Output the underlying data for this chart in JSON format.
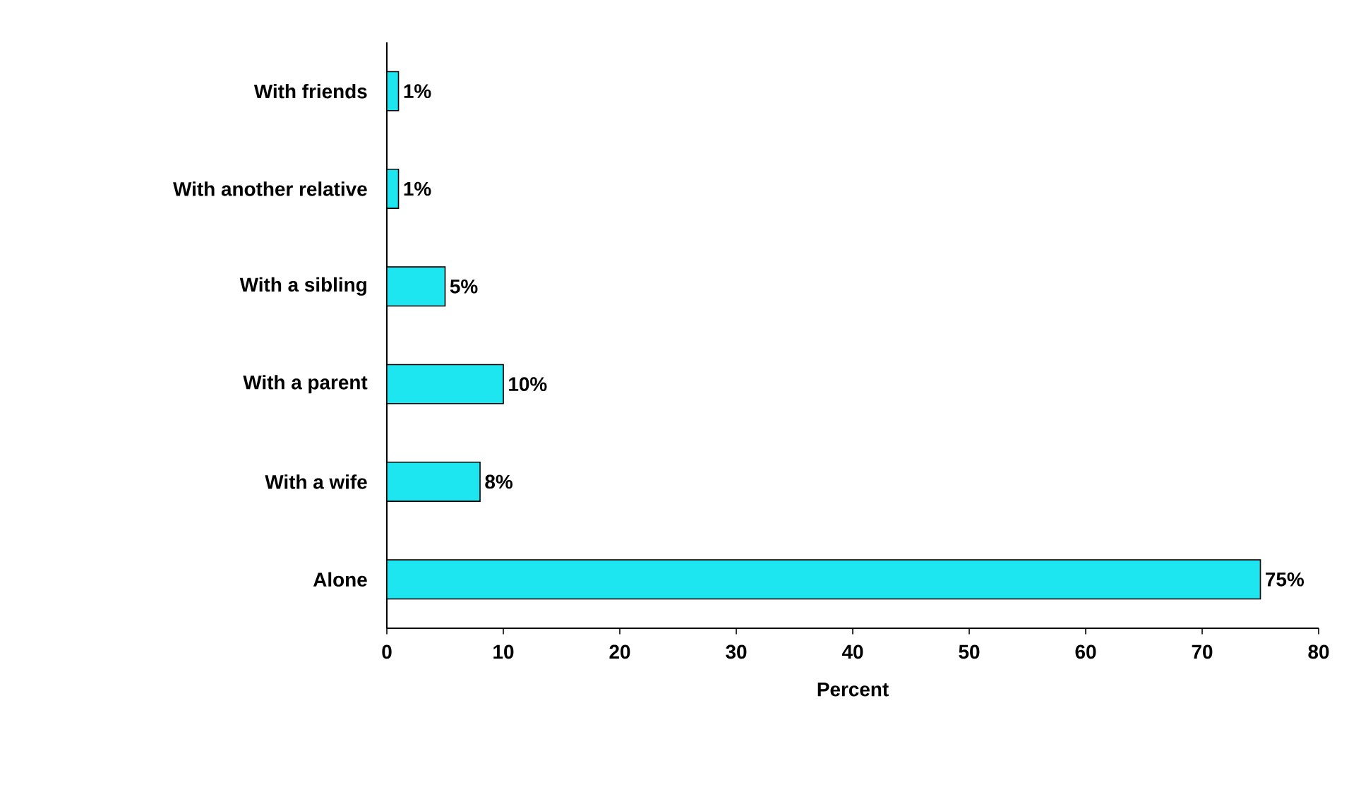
{
  "chart_data": {
    "type": "bar",
    "orientation": "horizontal",
    "categories": [
      "With friends",
      "With another relative",
      "With a sibling",
      "With a parent",
      "With a wife",
      "Alone"
    ],
    "values": [
      1,
      1,
      5,
      10,
      8,
      75
    ],
    "value_labels": [
      "1%",
      "1%",
      "5%",
      "10%",
      "8%",
      "75%"
    ],
    "color": "#1ee6f0",
    "xlim": [
      0,
      80
    ],
    "xticks": [
      0,
      10,
      20,
      30,
      40,
      50,
      60,
      70,
      80
    ],
    "xlabel": "Percent"
  }
}
